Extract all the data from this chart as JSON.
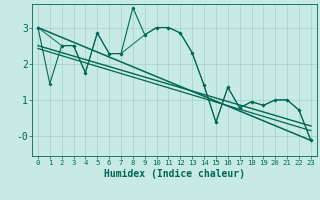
{
  "xlabel": "Humidex (Indice chaleur)",
  "background_color": "#c8eae4",
  "grid_color": "#a8d4cc",
  "line_color": "#006655",
  "xlim": [
    -0.5,
    23.5
  ],
  "ylim": [
    -0.55,
    3.65
  ],
  "yticks": [
    0,
    1,
    2,
    3
  ],
  "ytick_labels": [
    "-0",
    "1",
    "2",
    "3"
  ],
  "xticks": [
    0,
    1,
    2,
    3,
    4,
    5,
    6,
    7,
    8,
    9,
    10,
    11,
    12,
    13,
    14,
    15,
    16,
    17,
    18,
    19,
    20,
    21,
    22,
    23
  ],
  "series1_x": [
    0,
    1,
    2,
    3,
    4,
    5,
    6,
    7,
    8,
    9,
    10,
    11,
    12,
    13,
    14,
    15,
    16,
    17,
    18,
    19,
    20,
    21,
    22,
    23
  ],
  "series1_y": [
    3.0,
    1.45,
    2.5,
    2.5,
    1.75,
    2.85,
    2.28,
    2.28,
    3.55,
    2.8,
    3.0,
    3.0,
    2.85,
    2.3,
    1.4,
    0.38,
    1.35,
    0.78,
    0.95,
    0.85,
    1.0,
    1.0,
    0.72,
    -0.12
  ],
  "series2_x": [
    0,
    2,
    3,
    4,
    5,
    6,
    7,
    9,
    10,
    11,
    12,
    13,
    14,
    15,
    16,
    17,
    18,
    19,
    20,
    21,
    22,
    23
  ],
  "series2_y": [
    3.0,
    2.5,
    2.5,
    1.75,
    2.85,
    2.28,
    2.28,
    2.8,
    3.0,
    3.0,
    2.85,
    2.3,
    1.4,
    0.38,
    1.35,
    0.78,
    0.95,
    0.85,
    1.0,
    1.0,
    0.72,
    -0.12
  ],
  "trend1_x": [
    0,
    23
  ],
  "trend1_y": [
    3.0,
    -0.12
  ],
  "trend2_x": [
    0,
    23
  ],
  "trend2_y": [
    2.5,
    0.28
  ],
  "trend3_x": [
    0,
    23
  ],
  "trend3_y": [
    2.42,
    0.15
  ]
}
